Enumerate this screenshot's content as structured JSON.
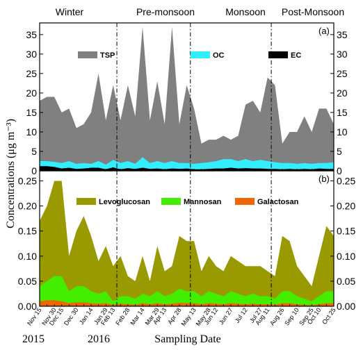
{
  "chart_data": [
    {
      "type": "area",
      "panel_label": "(a)",
      "ylabel": "Concentrations (μg m⁻³)",
      "xlabel": "Sampling Date",
      "ylim": [
        0,
        38
      ],
      "yticks": [
        0,
        5,
        10,
        15,
        20,
        25,
        30,
        35
      ],
      "seasons": [
        "Winter",
        "Pre-monsoon",
        "Monsoon",
        "Post-Monsoon"
      ],
      "x_tick_labels": [
        "Nov 15",
        "Nov 30",
        "Dec 15",
        "Dec 30",
        "Jan 14",
        "Jan 29",
        "Feb 13",
        "Feb 28",
        "Mar 14",
        "Mar 29",
        "Apr 13",
        "Apr 28",
        "May 13",
        "May 28",
        "Jun 12",
        "Jun 27",
        "Jul 12",
        "Jul 27",
        "Aug 11",
        "Aug 26",
        "Sep 10",
        "Sep 25",
        "Oct 10",
        "Oct 25"
      ],
      "year_labels": [
        "2015",
        "2016"
      ],
      "series": [
        {
          "name": "TSP",
          "color": "#808080",
          "values": [
            18,
            19,
            19,
            15,
            16,
            11,
            12,
            15,
            25,
            13,
            22,
            13,
            22,
            14,
            37,
            13,
            23,
            12,
            37,
            12,
            22,
            16,
            7,
            8,
            8,
            9,
            8,
            9,
            17,
            18,
            15,
            24,
            22,
            7,
            10,
            10,
            14,
            10,
            16,
            16,
            12
          ]
        },
        {
          "name": "OC",
          "color": "#33eeff",
          "values": [
            2.5,
            2.5,
            2.3,
            2,
            2.5,
            1.8,
            2,
            1.8,
            2.5,
            1.6,
            2.8,
            2,
            2.5,
            1.8,
            3.5,
            2,
            2.5,
            2,
            2.5,
            2,
            2,
            1.8,
            2,
            2.2,
            2.5,
            3,
            3,
            2.5,
            3,
            2.5,
            2.8,
            2.5,
            2.2,
            2,
            2,
            1.8,
            2,
            1.8,
            2,
            2,
            2.2
          ]
        },
        {
          "name": "EC",
          "color": "#000000",
          "values": [
            1.2,
            1.2,
            1,
            0.6,
            0.8,
            0.5,
            0.6,
            0.8,
            0.8,
            0.4,
            0.9,
            0.4,
            0.7,
            0.5,
            0.8,
            0.5,
            0.6,
            0.4,
            0.6,
            0.5,
            0.6,
            0.4,
            0.4,
            0.5,
            0.6,
            0.6,
            0.8,
            0.6,
            0.7,
            0.6,
            0.6,
            0.5,
            0.5,
            0.4,
            0.5,
            0.4,
            0.5,
            0.4,
            0.6,
            0.5,
            0.5
          ]
        }
      ],
      "season_boundaries_index": [
        10.5,
        20.5,
        31.5
      ]
    },
    {
      "type": "area",
      "panel_label": "(b)",
      "ylim": [
        0,
        0.27
      ],
      "yticks": [
        "0.00",
        "0.05",
        "0.10",
        "0.15",
        "0.20",
        "0.25"
      ],
      "series": [
        {
          "name": "Levoglucosan",
          "color": "#999900",
          "values": [
            0.17,
            0.2,
            0.25,
            0.25,
            0.1,
            0.15,
            0.18,
            0.14,
            0.09,
            0.12,
            0.08,
            0.1,
            0.06,
            0.05,
            0.1,
            0.05,
            0.12,
            0.07,
            0.08,
            0.14,
            0.13,
            0.13,
            0.07,
            0.1,
            0.08,
            0.07,
            0.1,
            0.09,
            0.08,
            0.08,
            0.08,
            0.07,
            0.06,
            0.14,
            0.13,
            0.08,
            0.06,
            0.04,
            0.1,
            0.16,
            0.14
          ]
        },
        {
          "name": "Mannosan",
          "color": "#44ee00",
          "values": [
            0.04,
            0.05,
            0.06,
            0.06,
            0.03,
            0.04,
            0.04,
            0.03,
            0.025,
            0.03,
            0.01,
            0.02,
            0.02,
            0.015,
            0.025,
            0.02,
            0.03,
            0.02,
            0.025,
            0.035,
            0.03,
            0.03,
            0.02,
            0.03,
            0.025,
            0.02,
            0.03,
            0.025,
            0.02,
            0.025,
            0.02,
            0.02,
            0.015,
            0.03,
            0.03,
            0.02,
            0.015,
            0.01,
            0.02,
            0.03,
            0.03
          ]
        },
        {
          "name": "Galactosan",
          "color": "#ee6600",
          "values": [
            0.01,
            0.012,
            0.012,
            0.01,
            0.006,
            0.008,
            0.008,
            0.006,
            0.005,
            0.006,
            0.003,
            0.005,
            0.004,
            0.003,
            0.006,
            0.004,
            0.006,
            0.004,
            0.005,
            0.007,
            0.006,
            0.006,
            0.004,
            0.006,
            0.005,
            0.004,
            0.006,
            0.005,
            0.004,
            0.005,
            0.004,
            0.004,
            0.003,
            0.006,
            0.006,
            0.004,
            0.003,
            0.002,
            0.004,
            0.006,
            0.006
          ]
        }
      ]
    }
  ]
}
